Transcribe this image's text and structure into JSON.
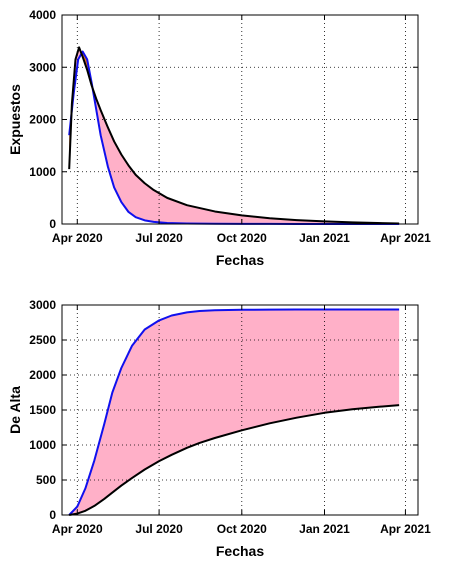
{
  "chart_data": [
    {
      "type": "area",
      "xlabel": "Fechas",
      "ylabel": "Expuestos",
      "ylim": [
        0,
        4000
      ],
      "yticks": [
        0,
        1000,
        2000,
        3000,
        4000
      ],
      "xlim": [
        "2020-03-15",
        "2021-04-15"
      ],
      "xticks": [
        {
          "date": "2020-04-01",
          "label": "Apr 2020"
        },
        {
          "date": "2020-07-01",
          "label": "Jul 2020"
        },
        {
          "date": "2020-10-01",
          "label": "Oct 2020"
        },
        {
          "date": "2021-01-01",
          "label": "Jan 2021"
        },
        {
          "date": "2021-04-01",
          "label": "Apr 2021"
        }
      ],
      "grid": true,
      "fill_between": [
        {
          "color": "#ffb0c8",
          "where": "black above blue"
        },
        {
          "color": "#e07020",
          "where": "blue above black"
        }
      ],
      "series": [
        {
          "color": "#1010ee",
          "x": [
            "2020-03-23",
            "2020-03-28",
            "2020-04-02",
            "2020-04-07",
            "2020-04-12",
            "2020-04-17",
            "2020-04-22",
            "2020-04-27",
            "2020-05-05",
            "2020-05-12",
            "2020-05-20",
            "2020-05-28",
            "2020-06-05",
            "2020-06-15",
            "2020-06-25",
            "2020-07-10",
            "2020-08-01",
            "2020-09-01",
            "2020-10-01",
            "2020-11-01",
            "2020-12-01",
            "2021-01-01",
            "2021-02-01",
            "2021-03-01",
            "2021-03-25"
          ],
          "values": [
            1700,
            2500,
            3150,
            3300,
            3150,
            2700,
            2200,
            1700,
            1100,
            700,
            420,
            230,
            130,
            70,
            40,
            20,
            10,
            5,
            3,
            2,
            1,
            1,
            0,
            0,
            0
          ]
        },
        {
          "color": "#000000",
          "x": [
            "2020-03-23",
            "2020-03-26",
            "2020-03-30",
            "2020-04-03",
            "2020-04-07",
            "2020-04-12",
            "2020-04-17",
            "2020-04-22",
            "2020-04-27",
            "2020-05-05",
            "2020-05-12",
            "2020-05-20",
            "2020-05-28",
            "2020-06-05",
            "2020-06-15",
            "2020-06-25",
            "2020-07-10",
            "2020-08-01",
            "2020-09-01",
            "2020-10-01",
            "2020-11-01",
            "2020-12-01",
            "2021-01-01",
            "2021-02-01",
            "2021-03-01",
            "2021-03-25"
          ],
          "values": [
            1050,
            2300,
            3150,
            3380,
            3200,
            2950,
            2650,
            2400,
            2180,
            1850,
            1580,
            1330,
            1120,
            940,
            780,
            650,
            500,
            360,
            240,
            165,
            110,
            75,
            50,
            30,
            18,
            10
          ]
        }
      ]
    },
    {
      "type": "area",
      "xlabel": "Fechas",
      "ylabel": "De Alta",
      "ylim": [
        0,
        3000
      ],
      "yticks": [
        0,
        500,
        1000,
        1500,
        2000,
        2500,
        3000
      ],
      "xlim": [
        "2020-03-15",
        "2021-04-15"
      ],
      "xticks": [
        {
          "date": "2020-04-01",
          "label": "Apr 2020"
        },
        {
          "date": "2020-07-01",
          "label": "Jul 2020"
        },
        {
          "date": "2020-10-01",
          "label": "Oct 2020"
        },
        {
          "date": "2021-01-01",
          "label": "Jan 2021"
        },
        {
          "date": "2021-04-01",
          "label": "Apr 2021"
        }
      ],
      "grid": true,
      "fill_between": [
        {
          "color": "#ffb0c8",
          "where": "blue above black"
        }
      ],
      "series": [
        {
          "color": "#1010ee",
          "x": [
            "2020-03-23",
            "2020-04-01",
            "2020-04-10",
            "2020-04-20",
            "2020-05-01",
            "2020-05-10",
            "2020-05-20",
            "2020-06-01",
            "2020-06-15",
            "2020-07-01",
            "2020-07-15",
            "2020-08-01",
            "2020-08-15",
            "2020-09-01",
            "2020-10-01",
            "2020-11-01",
            "2020-12-01",
            "2021-01-01",
            "2021-02-01",
            "2021-03-01",
            "2021-03-25"
          ],
          "values": [
            0,
            120,
            380,
            780,
            1300,
            1750,
            2100,
            2420,
            2650,
            2780,
            2850,
            2895,
            2915,
            2925,
            2932,
            2934,
            2935,
            2935,
            2935,
            2935,
            2935
          ]
        },
        {
          "color": "#000000",
          "x": [
            "2020-03-23",
            "2020-04-01",
            "2020-04-10",
            "2020-04-20",
            "2020-05-01",
            "2020-05-10",
            "2020-05-20",
            "2020-06-01",
            "2020-06-15",
            "2020-07-01",
            "2020-07-15",
            "2020-08-01",
            "2020-08-15",
            "2020-09-01",
            "2020-10-01",
            "2020-11-01",
            "2020-12-01",
            "2021-01-01",
            "2021-02-01",
            "2021-03-01",
            "2021-03-25"
          ],
          "values": [
            0,
            20,
            60,
            130,
            230,
            320,
            420,
            530,
            650,
            770,
            860,
            960,
            1030,
            1100,
            1210,
            1310,
            1390,
            1460,
            1510,
            1545,
            1570
          ]
        }
      ]
    }
  ]
}
